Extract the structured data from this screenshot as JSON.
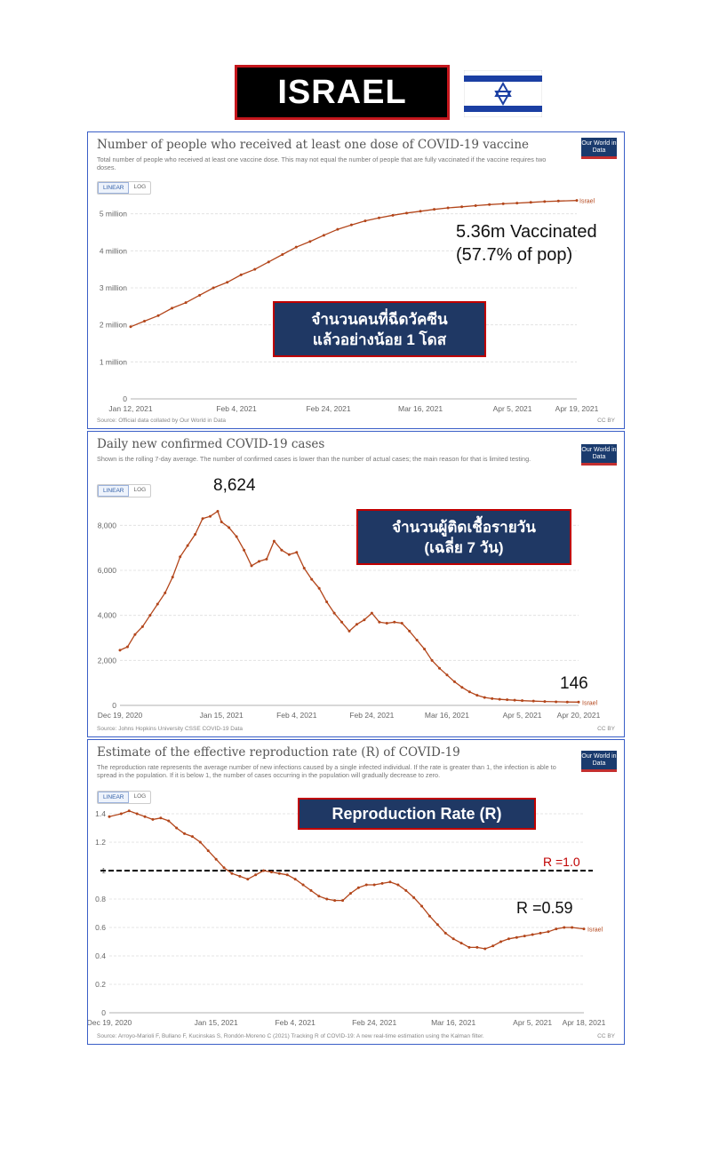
{
  "header": {
    "title": "ISRAEL",
    "flag": "israel-flag-icon"
  },
  "colors": {
    "line": "#b3461b",
    "callout_bg": "#1f3864",
    "callout_border": "#c00000",
    "panel_border": "#3a5ec7",
    "r_line_label": "#c00000"
  },
  "panels": [
    {
      "title": "Number of people who received at least one dose of COVID-19 vaccine",
      "subtitle": "Total number of people who received at least one vaccine dose. This may not equal the number of people that are fully vaccinated if the vaccine requires two doses.",
      "toggle": {
        "linear": "LINEAR",
        "log": "LOG"
      },
      "owid": "Our World in Data",
      "source": "Source: Official data collated by Our World in Data",
      "license": "CC BY",
      "series_label": "Israel",
      "callout": [
        "จำนวนคนที่ฉีดวัคซีน",
        "แล้วอย่างน้อย 1 โดส"
      ],
      "annotation": [
        "5.36m Vaccinated",
        "(57.7% of pop)"
      ]
    },
    {
      "title": "Daily new confirmed COVID-19 cases",
      "subtitle": "Shown is the rolling 7-day average. The number of confirmed cases is lower than the number of actual cases; the main reason for that is limited testing.",
      "toggle": {
        "linear": "LINEAR",
        "log": "LOG"
      },
      "owid": "Our World in Data",
      "source": "Source: Johns Hopkins University CSSE COVID-19 Data",
      "license": "CC BY",
      "series_label": "Israel",
      "callout": [
        "จำนวนผู้ติดเชื้อรายวัน",
        "(เฉลี่ย 7 วัน)"
      ],
      "peak_annotation": "8,624",
      "last_annotation": "146"
    },
    {
      "title": "Estimate of the effective reproduction rate (R) of COVID-19",
      "subtitle": "The reproduction rate represents the average number of new infections caused by a single infected individual. If the rate is greater than 1, the infection is able to spread in the population. If it is below 1, the number of cases occurring in the population will gradually decrease to zero.",
      "toggle": {
        "linear": "LINEAR",
        "log": "LOG"
      },
      "owid": "Our World in Data",
      "source": "Source: Arroyo-Marioli F, Bullano F, Kucinskas S, Rondón-Moreno C (2021) Tracking R of COVID-19: A new real-time estimation using the Kalman filter.",
      "license": "CC BY",
      "series_label": "Israel",
      "callout": [
        "Reproduction Rate (R)"
      ],
      "ref_label": "R =1.0",
      "last_annotation": "R =0.59"
    }
  ],
  "chart_data": [
    {
      "type": "line",
      "title": "Number of people who received at least one dose of COVID-19 vaccine",
      "x_ticks": [
        "Jan 12, 2021",
        "Feb 4, 2021",
        "Feb 24, 2021",
        "Mar 16, 2021",
        "Apr 5, 2021",
        "Apr 19, 2021"
      ],
      "x_tick_days": [
        0,
        23,
        43,
        63,
        83,
        97
      ],
      "y_ticks": [
        "0",
        "1 million",
        "2 million",
        "3 million",
        "4 million",
        "5 million"
      ],
      "y_tick_values": [
        0,
        1000000,
        2000000,
        3000000,
        4000000,
        5000000
      ],
      "xlim": [
        0,
        97
      ],
      "ylim": [
        0,
        5400000
      ],
      "x": [
        0,
        3,
        6,
        9,
        12,
        15,
        18,
        21,
        24,
        27,
        30,
        33,
        36,
        39,
        42,
        45,
        48,
        51,
        54,
        57,
        60,
        63,
        66,
        69,
        72,
        75,
        78,
        81,
        84,
        87,
        90,
        93,
        97
      ],
      "y": [
        1950000,
        2100000,
        2250000,
        2450000,
        2600000,
        2800000,
        3000000,
        3150000,
        3350000,
        3500000,
        3700000,
        3900000,
        4100000,
        4250000,
        4420000,
        4580000,
        4700000,
        4810000,
        4890000,
        4960000,
        5020000,
        5070000,
        5120000,
        5160000,
        5190000,
        5220000,
        5250000,
        5270000,
        5290000,
        5310000,
        5330000,
        5345000,
        5360000
      ]
    },
    {
      "type": "line",
      "title": "Daily new confirmed COVID-19 cases",
      "x_ticks": [
        "Dec 19, 2020",
        "Jan 15, 2021",
        "Feb 4, 2021",
        "Feb 24, 2021",
        "Mar 16, 2021",
        "Apr 5, 2021",
        "Apr 20, 2021"
      ],
      "x_tick_days": [
        0,
        27,
        47,
        67,
        87,
        107,
        122
      ],
      "y_ticks": [
        "0",
        "2,000",
        "4,000",
        "6,000",
        "8,000"
      ],
      "y_tick_values": [
        0,
        2000,
        4000,
        6000,
        8000
      ],
      "xlim": [
        0,
        122
      ],
      "ylim": [
        0,
        9000
      ],
      "x": [
        0,
        2,
        4,
        6,
        8,
        10,
        12,
        14,
        16,
        18,
        20,
        22,
        24,
        26,
        27,
        29,
        31,
        33,
        35,
        37,
        39,
        41,
        43,
        45,
        47,
        49,
        51,
        53,
        55,
        57,
        59,
        61,
        63,
        65,
        67,
        69,
        71,
        73,
        75,
        77,
        79,
        81,
        83,
        85,
        87,
        89,
        91,
        93,
        95,
        97,
        99,
        101,
        103,
        105,
        107,
        110,
        113,
        116,
        119,
        122
      ],
      "y": [
        2450,
        2600,
        3150,
        3500,
        4000,
        4500,
        5000,
        5700,
        6600,
        7100,
        7600,
        8300,
        8400,
        8624,
        8150,
        7900,
        7500,
        6900,
        6200,
        6400,
        6500,
        7300,
        6900,
        6700,
        6800,
        6100,
        5600,
        5200,
        4600,
        4100,
        3700,
        3300,
        3600,
        3800,
        4100,
        3700,
        3650,
        3700,
        3650,
        3300,
        2900,
        2500,
        2000,
        1650,
        1350,
        1050,
        800,
        600,
        450,
        350,
        300,
        270,
        250,
        230,
        210,
        190,
        175,
        160,
        150,
        146
      ]
    },
    {
      "type": "line",
      "title": "Estimate of the effective reproduction rate (R) of COVID-19",
      "x_ticks": [
        "Dec 19, 2020",
        "Jan 15, 2021",
        "Feb 4, 2021",
        "Feb 24, 2021",
        "Mar 16, 2021",
        "Apr 5, 2021",
        "Apr 18, 2021"
      ],
      "x_tick_days": [
        0,
        27,
        47,
        67,
        87,
        107,
        120
      ],
      "y_ticks": [
        "0",
        "0.2",
        "0.4",
        "0.6",
        "0.8",
        "1",
        "1.2",
        "1.4"
      ],
      "y_tick_values": [
        0,
        0.2,
        0.4,
        0.6,
        0.8,
        1.0,
        1.2,
        1.4
      ],
      "xlim": [
        0,
        120
      ],
      "ylim": [
        0,
        1.45
      ],
      "reference_line": 1.0,
      "x": [
        0,
        3,
        5,
        7,
        9,
        11,
        13,
        15,
        17,
        19,
        21,
        23,
        25,
        27,
        29,
        31,
        33,
        35,
        37,
        39,
        41,
        43,
        45,
        47,
        49,
        51,
        53,
        55,
        57,
        59,
        61,
        63,
        65,
        67,
        69,
        71,
        73,
        75,
        77,
        79,
        81,
        83,
        85,
        87,
        89,
        91,
        93,
        95,
        97,
        99,
        101,
        103,
        105,
        107,
        109,
        111,
        113,
        115,
        117,
        120
      ],
      "y": [
        1.38,
        1.4,
        1.42,
        1.4,
        1.38,
        1.36,
        1.37,
        1.35,
        1.3,
        1.26,
        1.24,
        1.2,
        1.14,
        1.08,
        1.02,
        0.98,
        0.96,
        0.94,
        0.97,
        1.0,
        0.99,
        0.98,
        0.97,
        0.94,
        0.9,
        0.86,
        0.82,
        0.8,
        0.79,
        0.79,
        0.84,
        0.88,
        0.9,
        0.9,
        0.91,
        0.92,
        0.9,
        0.86,
        0.81,
        0.75,
        0.68,
        0.62,
        0.56,
        0.52,
        0.49,
        0.46,
        0.46,
        0.45,
        0.47,
        0.5,
        0.52,
        0.53,
        0.54,
        0.55,
        0.56,
        0.57,
        0.59,
        0.6,
        0.6,
        0.59
      ]
    }
  ]
}
